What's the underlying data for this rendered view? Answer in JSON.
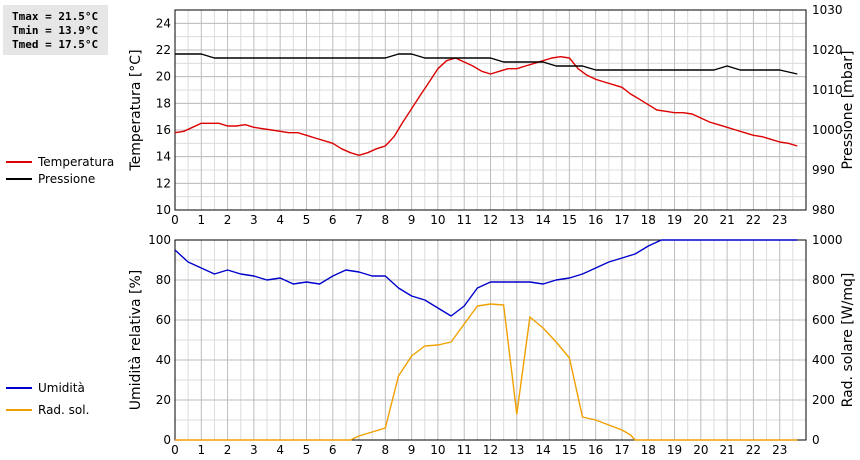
{
  "stats": {
    "tmax": "Tmax = 21.5°C",
    "tmin": "Tmin = 13.9°C",
    "tmed": "Tmed = 17.5°C"
  },
  "legend_top": [
    {
      "label": "Temperatura",
      "color": "#dd0000"
    },
    {
      "label": "Pressione",
      "color": "#000000"
    }
  ],
  "legend_bottom": [
    {
      "label": "Umidità",
      "color": "#0000cc"
    },
    {
      "label": "Rad. sol.",
      "color": "#f0a000"
    }
  ],
  "chart_data": [
    {
      "type": "line",
      "xlim": [
        0,
        24
      ],
      "x_ticks": [
        0,
        1,
        2,
        3,
        4,
        5,
        6,
        7,
        8,
        9,
        10,
        11,
        12,
        13,
        14,
        15,
        16,
        17,
        18,
        19,
        20,
        21,
        22,
        23
      ],
      "ylabel": "Temperatura [°C]",
      "ylim": [
        10,
        25
      ],
      "y_ticks": [
        10,
        12,
        14,
        16,
        18,
        20,
        22,
        24
      ],
      "y2label": "Pressione [mbar]",
      "y2lim": [
        980,
        1030
      ],
      "y2_ticks": [
        980,
        990,
        1000,
        1010,
        1020,
        1030
      ],
      "grid": true,
      "series": [
        {
          "name": "Temperatura",
          "axis": "left",
          "color": "#dd0000",
          "x": [
            0,
            0.33,
            0.67,
            1,
            1.33,
            1.67,
            2,
            2.33,
            2.67,
            3,
            3.33,
            3.67,
            4,
            4.33,
            4.67,
            5,
            5.33,
            5.67,
            6,
            6.33,
            6.67,
            7,
            7.33,
            7.67,
            8,
            8.33,
            8.67,
            9,
            9.33,
            9.67,
            10,
            10.33,
            10.67,
            11,
            11.33,
            11.67,
            12,
            12.33,
            12.67,
            13,
            13.33,
            13.67,
            14,
            14.33,
            14.67,
            15,
            15.33,
            15.67,
            16,
            16.33,
            16.67,
            17,
            17.33,
            17.67,
            18,
            18.33,
            18.67,
            19,
            19.33,
            19.67,
            20,
            20.33,
            20.67,
            21,
            21.33,
            21.67,
            22,
            22.33,
            22.67,
            23,
            23.33,
            23.67
          ],
          "y": [
            15.8,
            15.9,
            16.2,
            16.5,
            16.5,
            16.5,
            16.3,
            16.3,
            16.4,
            16.2,
            16.1,
            16.0,
            15.9,
            15.8,
            15.8,
            15.6,
            15.4,
            15.2,
            15.0,
            14.6,
            14.3,
            14.1,
            14.3,
            14.6,
            14.8,
            15.5,
            16.6,
            17.6,
            18.6,
            19.6,
            20.6,
            21.2,
            21.4,
            21.1,
            20.8,
            20.4,
            20.2,
            20.4,
            20.6,
            20.6,
            20.8,
            21.0,
            21.2,
            21.4,
            21.5,
            21.4,
            20.6,
            20.1,
            19.8,
            19.6,
            19.4,
            19.2,
            18.7,
            18.3,
            17.9,
            17.5,
            17.4,
            17.3,
            17.3,
            17.2,
            16.9,
            16.6,
            16.4,
            16.2,
            16.0,
            15.8,
            15.6,
            15.5,
            15.3,
            15.1,
            15.0,
            14.8
          ]
        },
        {
          "name": "Pressione",
          "axis": "right",
          "color": "#000000",
          "x": [
            0,
            0.5,
            1,
            1.5,
            2,
            3,
            4,
            5,
            6,
            7,
            8,
            8.5,
            9,
            9.5,
            10,
            11,
            12,
            12.5,
            13,
            14,
            14.5,
            15,
            15.5,
            16,
            17,
            18,
            19,
            20,
            20.5,
            21,
            21.5,
            22,
            22.5,
            23,
            23.67
          ],
          "y": [
            1019,
            1019,
            1019,
            1018,
            1018,
            1018,
            1018,
            1018,
            1018,
            1018,
            1018,
            1019,
            1019,
            1018,
            1018,
            1018,
            1018,
            1017,
            1017,
            1017,
            1016,
            1016,
            1016,
            1015,
            1015,
            1015,
            1015,
            1015,
            1015,
            1016,
            1015,
            1015,
            1015,
            1015,
            1014
          ]
        }
      ]
    },
    {
      "type": "line",
      "xlim": [
        0,
        24
      ],
      "x_ticks": [
        0,
        1,
        2,
        3,
        4,
        5,
        6,
        7,
        8,
        9,
        10,
        11,
        12,
        13,
        14,
        15,
        16,
        17,
        18,
        19,
        20,
        21,
        22,
        23
      ],
      "ylabel": "Umidità relativa [%]",
      "ylim": [
        0,
        100
      ],
      "y_ticks": [
        0,
        20,
        40,
        60,
        80,
        100
      ],
      "y2label": "Rad. solare [W/mq]",
      "y2lim": [
        0,
        1000
      ],
      "y2_ticks": [
        0,
        200,
        400,
        600,
        800,
        1000
      ],
      "grid": true,
      "series": [
        {
          "name": "Umidità",
          "axis": "left",
          "color": "#0000cc",
          "x": [
            0,
            0.5,
            1,
            1.5,
            2,
            2.5,
            3,
            3.5,
            4,
            4.5,
            5,
            5.5,
            6,
            6.5,
            7,
            7.5,
            8,
            8.5,
            9,
            9.5,
            10,
            10.5,
            11,
            11.5,
            12,
            12.5,
            13,
            13.5,
            14,
            14.5,
            15,
            15.5,
            16,
            16.5,
            17,
            17.5,
            18,
            18.5,
            19,
            20,
            21,
            22,
            23,
            23.67
          ],
          "y": [
            95,
            89,
            86,
            83,
            85,
            83,
            82,
            80,
            81,
            78,
            79,
            78,
            82,
            85,
            84,
            82,
            82,
            76,
            72,
            70,
            66,
            62,
            67,
            76,
            79,
            79,
            79,
            79,
            78,
            80,
            81,
            83,
            86,
            89,
            91,
            93,
            97,
            100,
            100,
            100,
            100,
            100,
            100,
            100
          ]
        },
        {
          "name": "Rad. sol.",
          "axis": "right",
          "color": "#f0a000",
          "x": [
            0,
            1,
            2,
            3,
            4,
            5,
            6,
            6.67,
            7,
            7.5,
            8,
            8.5,
            9,
            9.5,
            10,
            10.5,
            11,
            11.5,
            12,
            12.5,
            13,
            13.5,
            14,
            14.5,
            15,
            15.5,
            16,
            16.5,
            17,
            17.33,
            17.5,
            18,
            19,
            20,
            21,
            22,
            23,
            23.67
          ],
          "y": [
            0,
            0,
            0,
            0,
            0,
            0,
            0,
            0,
            20,
            40,
            60,
            320,
            420,
            470,
            475,
            490,
            580,
            670,
            680,
            675,
            130,
            615,
            560,
            490,
            410,
            115,
            100,
            75,
            50,
            25,
            0,
            0,
            0,
            0,
            0,
            0,
            0,
            0
          ]
        }
      ]
    }
  ]
}
